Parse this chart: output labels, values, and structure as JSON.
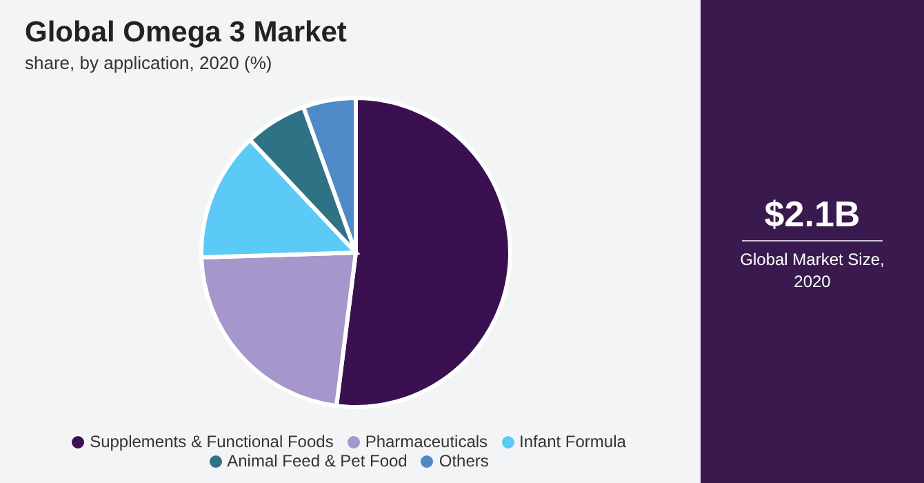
{
  "chart_data": {
    "type": "pie",
    "title": "Global Omega 3 Market",
    "subtitle": "share, by application, 2020 (%)",
    "categories": [
      "Supplements & Functional Foods",
      "Pharmaceuticals",
      "Infant Formula",
      "Animal Feed & Pet Food",
      "Others"
    ],
    "values": [
      52,
      22.5,
      13.5,
      6.5,
      5.5
    ],
    "colors": [
      "#3a1050",
      "#a596cc",
      "#5ccaf6",
      "#2e7286",
      "#4d8ac6"
    ],
    "legend": "bottom",
    "annotations": [
      "$2.1B",
      "Global Market Size, 2020"
    ]
  }
}
